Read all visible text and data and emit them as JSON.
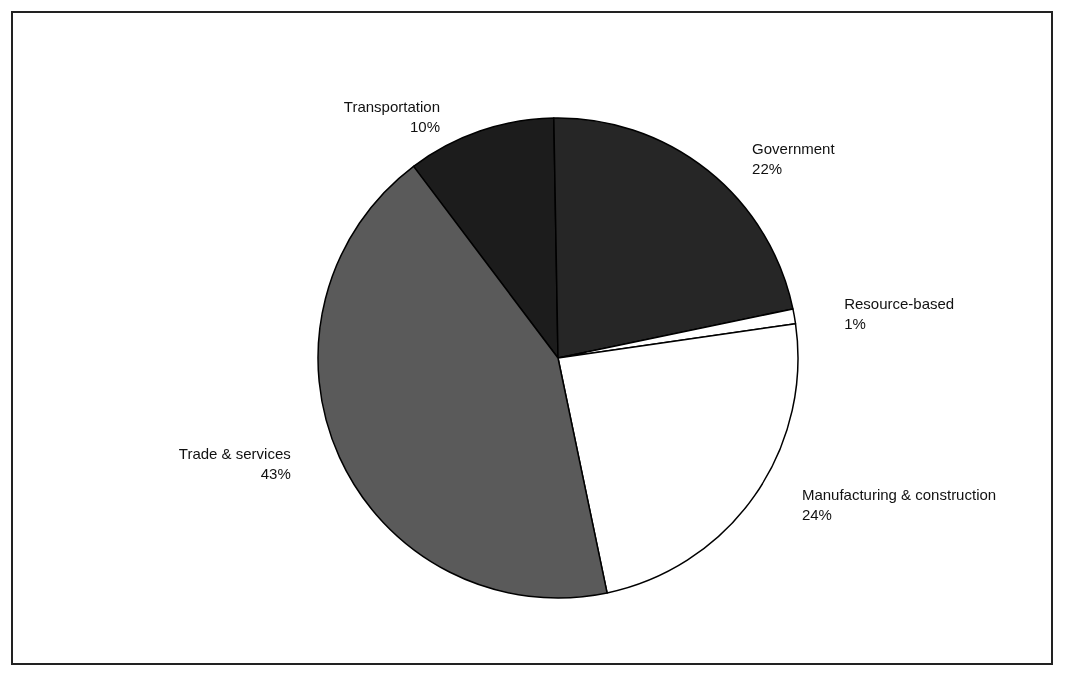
{
  "chart_data": {
    "type": "pie",
    "categories": [
      "Transportation",
      "Government",
      "Resource-based",
      "Manufacturing & construction",
      "Trade & services"
    ],
    "values": [
      10,
      22,
      1,
      24,
      43
    ],
    "value_labels": [
      "10%",
      "22%",
      "1%",
      "24%",
      "43%"
    ],
    "colors": [
      "#1c1c1c",
      "#262626",
      "#ffffff",
      "#ffffff",
      "#5a5a5a"
    ]
  }
}
